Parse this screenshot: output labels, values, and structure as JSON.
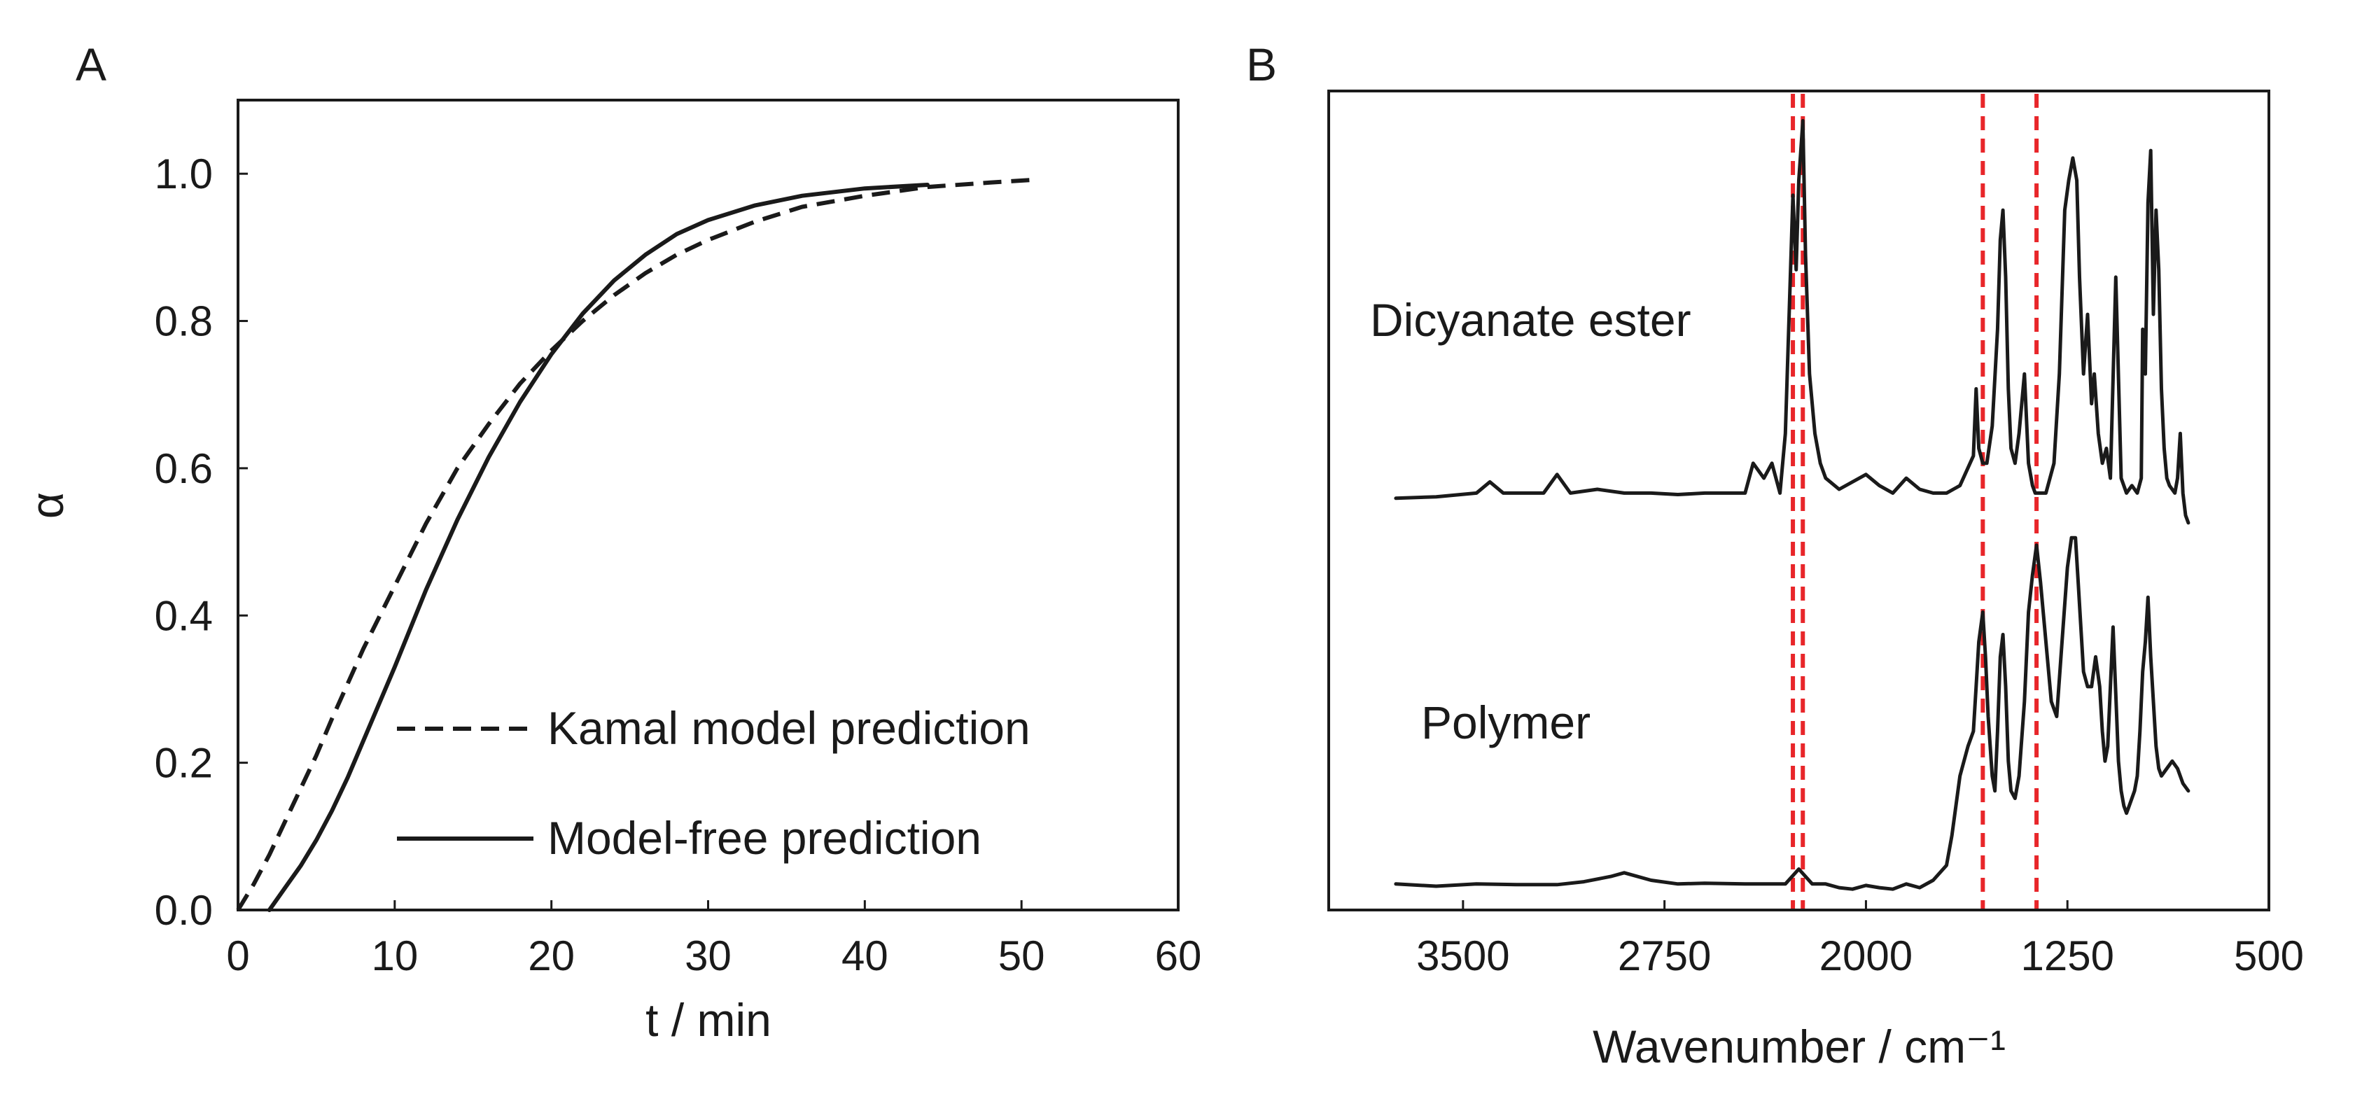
{
  "chart_data": [
    {
      "type": "line",
      "panel_label": "A",
      "xlabel": "t / min",
      "ylabel": "α",
      "xlim": [
        0,
        60
      ],
      "ylim": [
        0,
        1.1
      ],
      "xticks": [
        0,
        10,
        20,
        30,
        40,
        50,
        60
      ],
      "yticks": [
        0.0,
        0.2,
        0.4,
        0.6,
        0.8,
        1.0
      ],
      "xtick_labels": [
        "0",
        "10",
        "20",
        "30",
        "40",
        "50",
        "60"
      ],
      "ytick_labels": [
        "0.0",
        "0.2",
        "0.4",
        "0.6",
        "0.8",
        "1.0"
      ],
      "legend_position": "bottom-right",
      "series": [
        {
          "name": "Kamal model prediction",
          "style": "dashed",
          "x": [
            0,
            1,
            2,
            3,
            4,
            5,
            6,
            8,
            10,
            12,
            14,
            16,
            18,
            20,
            22,
            24,
            26,
            28,
            30,
            33,
            36,
            40,
            44,
            48,
            51
          ],
          "y": [
            0.0,
            0.035,
            0.075,
            0.12,
            0.165,
            0.21,
            0.26,
            0.355,
            0.44,
            0.525,
            0.6,
            0.66,
            0.715,
            0.76,
            0.8,
            0.835,
            0.865,
            0.89,
            0.91,
            0.935,
            0.955,
            0.97,
            0.982,
            0.988,
            0.992
          ]
        },
        {
          "name": "Model-free prediction",
          "style": "solid",
          "x": [
            2,
            3,
            4,
            5,
            6,
            7,
            8,
            10,
            12,
            14,
            16,
            18,
            20,
            22,
            24,
            26,
            28,
            30,
            33,
            36,
            40,
            44
          ],
          "y": [
            0.0,
            0.03,
            0.06,
            0.095,
            0.135,
            0.18,
            0.23,
            0.33,
            0.435,
            0.53,
            0.615,
            0.69,
            0.755,
            0.81,
            0.855,
            0.89,
            0.918,
            0.937,
            0.957,
            0.97,
            0.98,
            0.985
          ]
        }
      ]
    },
    {
      "type": "line",
      "panel_label": "B",
      "xlabel": "Wavenumber / cm⁻¹",
      "ylabel": "",
      "xlim": [
        4000,
        500
      ],
      "x_reversed": true,
      "xticks": [
        3500,
        2750,
        2000,
        1250,
        500
      ],
      "xtick_labels": [
        "3500",
        "2750",
        "2000",
        "1250",
        "500"
      ],
      "ylim": [
        0,
        1.1
      ],
      "yticks_hidden": true,
      "reference_lines": {
        "color": "#e8262a",
        "style": "dashed",
        "x": [
          2272,
          2235,
          1565,
          1365
        ]
      },
      "series": [
        {
          "name": "Dicyanate ester",
          "label": "Dicyanate ester",
          "x": [
            3750,
            3600,
            3450,
            3400,
            3350,
            3200,
            3150,
            3100,
            3000,
            2900,
            2800,
            2700,
            2600,
            2450,
            2420,
            2380,
            2350,
            2320,
            2300,
            2272,
            2260,
            2250,
            2235,
            2225,
            2210,
            2190,
            2170,
            2150,
            2100,
            2000,
            1950,
            1900,
            1850,
            1800,
            1750,
            1700,
            1650,
            1600,
            1590,
            1580,
            1565,
            1550,
            1530,
            1510,
            1500,
            1490,
            1480,
            1470,
            1460,
            1445,
            1430,
            1410,
            1395,
            1380,
            1370,
            1350,
            1330,
            1300,
            1280,
            1260,
            1245,
            1230,
            1215,
            1205,
            1190,
            1175,
            1160,
            1150,
            1135,
            1120,
            1105,
            1090,
            1070,
            1050,
            1030,
            1010,
            990,
            975,
            970,
            960,
            950,
            940,
            930,
            920,
            910,
            900,
            890,
            880,
            870,
            850,
            840,
            830,
            820,
            810,
            800
          ],
          "y": [
            0.553,
            0.555,
            0.56,
            0.575,
            0.56,
            0.56,
            0.585,
            0.56,
            0.565,
            0.56,
            0.56,
            0.558,
            0.56,
            0.56,
            0.6,
            0.58,
            0.6,
            0.56,
            0.64,
            0.96,
            0.86,
            0.98,
            1.06,
            0.88,
            0.72,
            0.64,
            0.6,
            0.58,
            0.565,
            0.585,
            0.57,
            0.56,
            0.58,
            0.565,
            0.56,
            0.56,
            0.57,
            0.61,
            0.7,
            0.62,
            0.6,
            0.6,
            0.65,
            0.78,
            0.9,
            0.94,
            0.85,
            0.7,
            0.62,
            0.6,
            0.64,
            0.72,
            0.6,
            0.57,
            0.56,
            0.56,
            0.56,
            0.6,
            0.72,
            0.94,
            0.98,
            1.01,
            0.98,
            0.85,
            0.72,
            0.8,
            0.68,
            0.72,
            0.64,
            0.6,
            0.62,
            0.58,
            0.85,
            0.58,
            0.56,
            0.57,
            0.56,
            0.58,
            0.78,
            0.72,
            0.95,
            1.02,
            0.8,
            0.94,
            0.86,
            0.7,
            0.62,
            0.58,
            0.57,
            0.56,
            0.58,
            0.64,
            0.56,
            0.53,
            0.52
          ]
        },
        {
          "name": "Polymer",
          "label": "Polymer",
          "x": [
            3750,
            3600,
            3450,
            3300,
            3150,
            3050,
            2950,
            2900,
            2800,
            2700,
            2600,
            2450,
            2350,
            2300,
            2250,
            2200,
            2150,
            2100,
            2050,
            2000,
            1950,
            1900,
            1850,
            1800,
            1750,
            1700,
            1680,
            1650,
            1620,
            1600,
            1590,
            1580,
            1565,
            1555,
            1545,
            1530,
            1520,
            1510,
            1500,
            1490,
            1480,
            1470,
            1460,
            1445,
            1430,
            1410,
            1395,
            1380,
            1365,
            1350,
            1330,
            1310,
            1290,
            1270,
            1250,
            1235,
            1220,
            1210,
            1200,
            1190,
            1175,
            1160,
            1145,
            1130,
            1120,
            1110,
            1100,
            1090,
            1080,
            1070,
            1060,
            1050,
            1040,
            1030,
            1020,
            1010,
            1000,
            990,
            980,
            970,
            960,
            950,
            940,
            930,
            920,
            910,
            900,
            880,
            860,
            840,
            820,
            800
          ],
          "y": [
            0.035,
            0.032,
            0.035,
            0.034,
            0.034,
            0.038,
            0.045,
            0.05,
            0.04,
            0.035,
            0.036,
            0.035,
            0.035,
            0.035,
            0.055,
            0.035,
            0.035,
            0.03,
            0.028,
            0.033,
            0.03,
            0.028,
            0.035,
            0.03,
            0.04,
            0.06,
            0.1,
            0.18,
            0.22,
            0.24,
            0.3,
            0.36,
            0.4,
            0.34,
            0.26,
            0.18,
            0.16,
            0.24,
            0.34,
            0.37,
            0.3,
            0.2,
            0.16,
            0.15,
            0.18,
            0.28,
            0.4,
            0.45,
            0.49,
            0.44,
            0.36,
            0.28,
            0.26,
            0.36,
            0.46,
            0.5,
            0.5,
            0.44,
            0.38,
            0.32,
            0.3,
            0.3,
            0.34,
            0.3,
            0.24,
            0.2,
            0.22,
            0.3,
            0.38,
            0.29,
            0.2,
            0.16,
            0.14,
            0.13,
            0.14,
            0.15,
            0.16,
            0.18,
            0.24,
            0.32,
            0.36,
            0.42,
            0.34,
            0.28,
            0.22,
            0.19,
            0.18,
            0.19,
            0.2,
            0.19,
            0.17,
            0.16
          ]
        }
      ]
    }
  ]
}
